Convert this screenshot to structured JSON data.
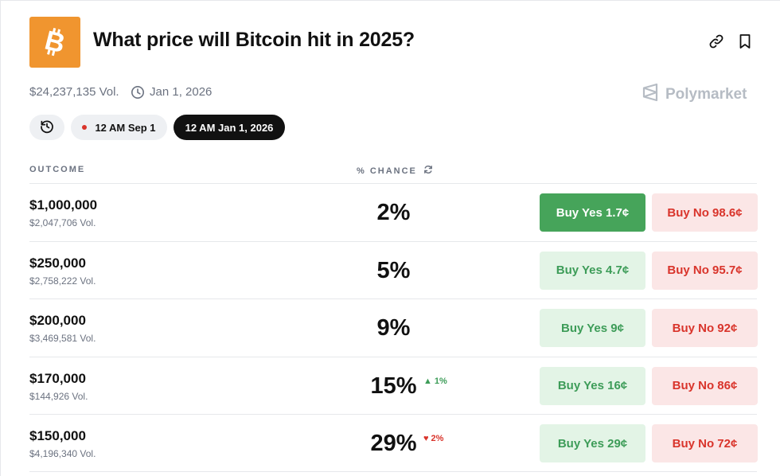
{
  "header": {
    "title": "What price will Bitcoin hit in 2025?",
    "volume": "$24,237,135 Vol.",
    "end_date": "Jan 1, 2026",
    "brand": "Polymarket"
  },
  "time_filters": {
    "option_1": "12 AM Sep 1",
    "option_2_selected": "12 AM Jan 1, 2026"
  },
  "table": {
    "col_outcome": "OUTCOME",
    "col_chance": "% CHANCE",
    "rows": [
      {
        "price": "$1,000,000",
        "volume": "$2,047,706 Vol.",
        "chance": "2%",
        "delta": "",
        "buy_yes": "Buy Yes 1.7¢",
        "buy_no": "Buy No 98.6¢"
      },
      {
        "price": "$250,000",
        "volume": "$2,758,222 Vol.",
        "chance": "5%",
        "delta": "",
        "buy_yes": "Buy Yes 4.7¢",
        "buy_no": "Buy No 95.7¢"
      },
      {
        "price": "$200,000",
        "volume": "$3,469,581 Vol.",
        "chance": "9%",
        "delta": "",
        "buy_yes": "Buy Yes 9¢",
        "buy_no": "Buy No 92¢"
      },
      {
        "price": "$170,000",
        "volume": "$144,926 Vol.",
        "chance": "15%",
        "delta": "1%",
        "buy_yes": "Buy Yes 16¢",
        "buy_no": "Buy No 86¢"
      },
      {
        "price": "$150,000",
        "volume": "$4,196,340 Vol.",
        "chance": "29%",
        "delta": "2%",
        "buy_yes": "Buy Yes 29¢",
        "buy_no": "Buy No 72¢"
      }
    ]
  },
  "colors": {
    "bitcoin_orange": "#f0952f",
    "yes_green": "#46a45a",
    "no_red": "#d9342b"
  },
  "icons": [
    "bitcoin-icon",
    "link-icon",
    "bookmark-icon",
    "clock-icon",
    "polymarket-logo-icon",
    "history-icon",
    "refresh-icon",
    "triangle-up-icon",
    "triangle-down-icon"
  ]
}
